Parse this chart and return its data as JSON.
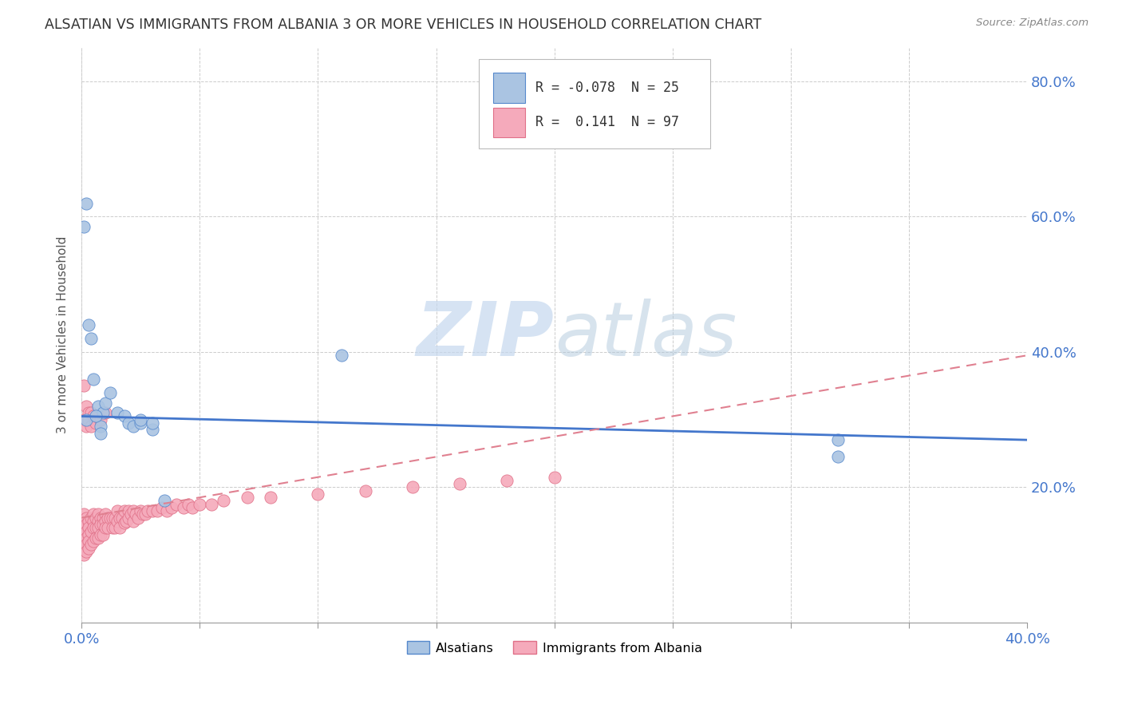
{
  "title": "ALSATIAN VS IMMIGRANTS FROM ALBANIA 3 OR MORE VEHICLES IN HOUSEHOLD CORRELATION CHART",
  "source": "Source: ZipAtlas.com",
  "ylabel": "3 or more Vehicles in Household",
  "watermark_part1": "ZIP",
  "watermark_part2": "atlas",
  "alsatian_color": "#aac4e2",
  "albania_color": "#f5aabb",
  "alsatian_edge_color": "#5588cc",
  "albania_edge_color": "#e07088",
  "alsatian_line_color": "#4477cc",
  "albania_line_color": "#e08090",
  "xlim": [
    0.0,
    0.4
  ],
  "ylim": [
    0.0,
    0.85
  ],
  "x_ticks": [
    0.0,
    0.05,
    0.1,
    0.15,
    0.2,
    0.25,
    0.3,
    0.35,
    0.4
  ],
  "y_ticks": [
    0.2,
    0.4,
    0.6,
    0.8
  ],
  "alsatian_line_y0": 0.305,
  "alsatian_line_y1": 0.27,
  "albania_line_y0": 0.155,
  "albania_line_y1": 0.395,
  "alsatian_pts_x": [
    0.001,
    0.002,
    0.003,
    0.005,
    0.007,
    0.008,
    0.009,
    0.01,
    0.012,
    0.015,
    0.018,
    0.02,
    0.022,
    0.025,
    0.03,
    0.035,
    0.11,
    0.32
  ],
  "alsatian_pts_y": [
    0.585,
    0.62,
    0.44,
    0.36,
    0.32,
    0.29,
    0.31,
    0.325,
    0.34,
    0.31,
    0.305,
    0.295,
    0.29,
    0.295,
    0.285,
    0.18,
    0.395,
    0.245
  ],
  "alsatian_pts_x2": [
    0.002,
    0.004,
    0.006,
    0.008,
    0.025,
    0.03,
    0.32
  ],
  "alsatian_pts_y2": [
    0.3,
    0.42,
    0.305,
    0.28,
    0.3,
    0.295,
    0.27
  ],
  "albania_pts_x": [
    0.001,
    0.001,
    0.001,
    0.001,
    0.001,
    0.002,
    0.002,
    0.002,
    0.002,
    0.002,
    0.002,
    0.003,
    0.003,
    0.003,
    0.003,
    0.003,
    0.004,
    0.004,
    0.004,
    0.005,
    0.005,
    0.005,
    0.005,
    0.006,
    0.006,
    0.006,
    0.007,
    0.007,
    0.007,
    0.007,
    0.008,
    0.008,
    0.008,
    0.009,
    0.009,
    0.009,
    0.01,
    0.01,
    0.01,
    0.011,
    0.011,
    0.012,
    0.013,
    0.013,
    0.014,
    0.014,
    0.015,
    0.015,
    0.016,
    0.016,
    0.017,
    0.018,
    0.018,
    0.019,
    0.02,
    0.02,
    0.021,
    0.022,
    0.022,
    0.023,
    0.024,
    0.025,
    0.026,
    0.027,
    0.028,
    0.03,
    0.032,
    0.034,
    0.036,
    0.038,
    0.04,
    0.043,
    0.045,
    0.047,
    0.05,
    0.055,
    0.06,
    0.07,
    0.08,
    0.1,
    0.12,
    0.14,
    0.16,
    0.18,
    0.2,
    0.001,
    0.001,
    0.002,
    0.002,
    0.003,
    0.003,
    0.004,
    0.004,
    0.005,
    0.006,
    0.008,
    0.01
  ],
  "albania_pts_y": [
    0.16,
    0.145,
    0.13,
    0.12,
    0.1,
    0.155,
    0.145,
    0.135,
    0.125,
    0.115,
    0.105,
    0.15,
    0.14,
    0.13,
    0.12,
    0.11,
    0.155,
    0.135,
    0.115,
    0.16,
    0.15,
    0.14,
    0.12,
    0.155,
    0.14,
    0.125,
    0.16,
    0.15,
    0.14,
    0.125,
    0.155,
    0.145,
    0.13,
    0.155,
    0.145,
    0.13,
    0.16,
    0.15,
    0.14,
    0.155,
    0.14,
    0.155,
    0.155,
    0.14,
    0.155,
    0.14,
    0.165,
    0.15,
    0.155,
    0.14,
    0.155,
    0.165,
    0.148,
    0.15,
    0.165,
    0.155,
    0.16,
    0.165,
    0.15,
    0.16,
    0.155,
    0.165,
    0.16,
    0.16,
    0.165,
    0.165,
    0.165,
    0.17,
    0.165,
    0.17,
    0.175,
    0.17,
    0.175,
    0.17,
    0.175,
    0.175,
    0.18,
    0.185,
    0.185,
    0.19,
    0.195,
    0.2,
    0.205,
    0.21,
    0.215,
    0.3,
    0.35,
    0.29,
    0.32,
    0.31,
    0.3,
    0.31,
    0.29,
    0.305,
    0.295,
    0.3,
    0.31
  ]
}
